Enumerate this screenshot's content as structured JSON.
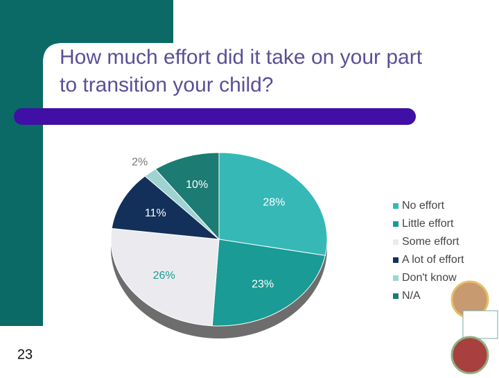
{
  "slide_number": "23",
  "chart_data": {
    "type": "pie",
    "title": "How much effort did it take on your part to transition your child?",
    "categories": [
      "No effort",
      "Little effort",
      "Some effort",
      "A lot of effort",
      "Don't know",
      "N/A"
    ],
    "values": [
      28,
      23,
      26,
      11,
      2,
      10
    ],
    "value_labels": [
      "28%",
      "23%",
      "26%",
      "11%",
      "2%",
      "10%"
    ],
    "colors": [
      "#35b8b6",
      "#1a9b95",
      "#ebebef",
      "#13305a",
      "#9fd3d1",
      "#1c7b73"
    ],
    "legend": "right"
  }
}
